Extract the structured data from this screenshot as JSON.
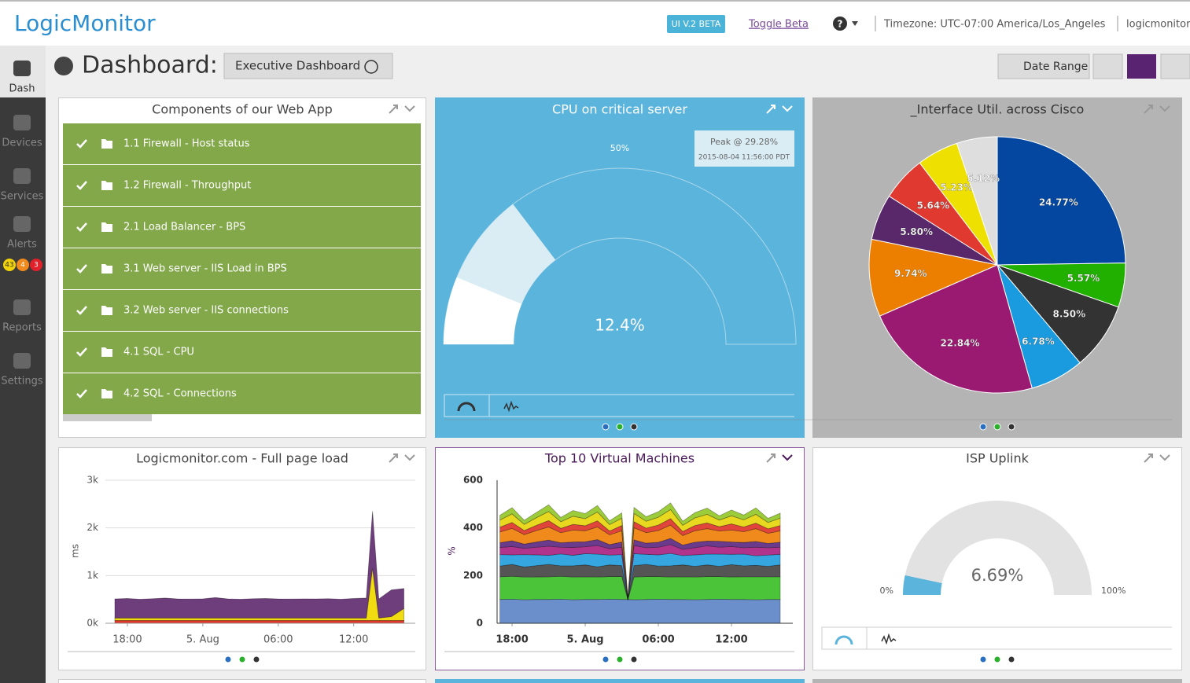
{
  "header": {
    "logo": "LogicMonitor",
    "beta_badge": "UI V.2 BETA",
    "toggle_beta": "Toggle Beta",
    "help": "?",
    "timezone": "Timezone: UTC-07:00 America/Los_Angeles",
    "user": "logicmonitor"
  },
  "sidebar": {
    "items": [
      "Dash",
      "Devices",
      "Services",
      "Alerts",
      "Reports",
      "Settings"
    ],
    "alert_counts": [
      43,
      4,
      3
    ]
  },
  "toolbar": {
    "label": "Dashboard:",
    "dashboard_name": "Executive Dashboard",
    "date_range": "Date Range"
  },
  "widgets": [
    {
      "type": "list",
      "title": "Components of our Web App",
      "items": [
        "1.1 Firewall - Host status",
        "1.2 Firewall - Throughput",
        "2.1 Load Balancer - BPS",
        "3.1 Web server - IIS Load in BPS",
        "3.2 Web server - IIS connections",
        "4.1 SQL - CPU",
        "4.2 SQL - Connections"
      ]
    },
    {
      "type": "gauge",
      "title": "CPU on critical server",
      "value": 12.4,
      "value_label": "12.4%",
      "range": [
        0,
        100
      ],
      "ticks": [
        {
          "value": 50,
          "label": "50%"
        }
      ],
      "peak": 29.28,
      "peak_label": "Peak @ 29.28%",
      "peak_time": "2015-08-04 11:56:00 PDT"
    },
    {
      "type": "pie",
      "title": "_Interface Util. across Cisco",
      "values": [
        24.77,
        5.57,
        8.5,
        6.78,
        22.84,
        9.74,
        5.8,
        5.64,
        5.23,
        5.12
      ],
      "value_labels": [
        "24.77%",
        "5.57%",
        "8.50%",
        "6.78%",
        "22.84%",
        "9.74%",
        "5.80%",
        "5.64%",
        "5.23%",
        "5.12%"
      ],
      "colors": [
        "#0347a0",
        "#21b000",
        "#333333",
        "#1a9be0",
        "#9a1a72",
        "#ec7f00",
        "#58286a",
        "#e03a30",
        "#eee000",
        "#dedede"
      ]
    },
    {
      "type": "area",
      "title": "Logicmonitor.com - Full page load",
      "y_label": "ms",
      "grid": true,
      "x": [
        17,
        18,
        19,
        20,
        21,
        22,
        23,
        24,
        25,
        26,
        27,
        28,
        29,
        30,
        31,
        32,
        33,
        34,
        35,
        36,
        37,
        37.5,
        38,
        39,
        40
      ],
      "xlim": [
        16.25,
        40.9
      ],
      "xticks": [
        {
          "value": 18,
          "label": "18:00"
        },
        {
          "value": 24,
          "label": "5. Aug"
        },
        {
          "value": 30,
          "label": "06:00"
        },
        {
          "value": 36,
          "label": "12:00"
        }
      ],
      "ylim": [
        0,
        3000
      ],
      "yticks": [
        {
          "value": 0,
          "label": "0k"
        },
        {
          "value": 1000,
          "label": "1k"
        },
        {
          "value": 2000,
          "label": "2k"
        },
        {
          "value": 3000,
          "label": "3k"
        }
      ],
      "series": [
        {
          "color": "#e0352b",
          "values": [
            60,
            60,
            60,
            60,
            60,
            60,
            60,
            60,
            60,
            60,
            60,
            60,
            60,
            60,
            60,
            60,
            60,
            60,
            60,
            60,
            60,
            60,
            60,
            60,
            60
          ]
        },
        {
          "color": "#f0dc10",
          "values": [
            50,
            50,
            50,
            50,
            50,
            50,
            50,
            50,
            50,
            50,
            50,
            50,
            50,
            50,
            50,
            50,
            50,
            50,
            50,
            50,
            50,
            1100,
            50,
            80,
            250
          ]
        },
        {
          "color": "#6e3d7c",
          "values": [
            400,
            410,
            395,
            405,
            420,
            400,
            398,
            402,
            430,
            400,
            395,
            405,
            410,
            400,
            398,
            402,
            400,
            405,
            395,
            410,
            420,
            1190,
            400,
            560,
            420
          ]
        }
      ]
    },
    {
      "type": "area",
      "title": "Top 10 Virtual Machines",
      "y_label": "%",
      "grid": false,
      "x": [
        17,
        18,
        19,
        20,
        21,
        22,
        23,
        24,
        25,
        26,
        27,
        27.5,
        28,
        29,
        30,
        31,
        32,
        33,
        34,
        35,
        36,
        37,
        38,
        39,
        40
      ],
      "xlim": [
        16.77,
        41.03
      ],
      "xticks": [
        {
          "value": 18,
          "label": "18:00"
        },
        {
          "value": 24,
          "label": "5. Aug"
        },
        {
          "value": 30,
          "label": "06:00"
        },
        {
          "value": 36,
          "label": "12:00"
        }
      ],
      "ylim": [
        0,
        600
      ],
      "yticks": [
        0,
        200,
        400,
        600
      ],
      "series": [
        {
          "color": "#6b8fcb",
          "values": [
            100,
            101,
            99,
            100,
            100,
            101,
            99,
            100,
            100,
            101,
            100,
            100,
            99,
            100,
            101,
            100,
            100,
            99,
            100,
            101,
            100,
            100,
            99,
            100,
            100
          ]
        },
        {
          "color": "#4cc43a",
          "values": [
            95,
            96,
            95,
            94,
            95,
            96,
            95,
            95,
            94,
            95,
            96,
            0,
            95,
            96,
            95,
            94,
            95,
            95,
            96,
            95,
            94,
            95,
            96,
            95,
            95
          ]
        },
        {
          "color": "#555555",
          "values": [
            45,
            50,
            42,
            48,
            52,
            44,
            47,
            50,
            43,
            49,
            46,
            0,
            48,
            51,
            44,
            47,
            50,
            45,
            49,
            43,
            52,
            46,
            48,
            44,
            50
          ]
        },
        {
          "color": "#35a6e0",
          "values": [
            48,
            40,
            52,
            45,
            38,
            50,
            44,
            47,
            53,
            41,
            46,
            0,
            50,
            42,
            47,
            52,
            39,
            48,
            45,
            51,
            43,
            49,
            40,
            47,
            44
          ]
        },
        {
          "color": "#b0348c",
          "values": [
            30,
            35,
            26,
            32,
            38,
            28,
            33,
            29,
            36,
            27,
            31,
            0,
            34,
            28,
            32,
            37,
            26,
            30,
            35,
            29,
            33,
            27,
            36,
            31,
            30
          ]
        },
        {
          "color": "#6a3a8c",
          "values": [
            20,
            24,
            18,
            22,
            26,
            19,
            23,
            21,
            25,
            17,
            22,
            0,
            24,
            19,
            21,
            26,
            18,
            23,
            20,
            25,
            19,
            22,
            24,
            18,
            21
          ]
        },
        {
          "color": "#f08a1c",
          "values": [
            45,
            52,
            40,
            48,
            55,
            42,
            50,
            46,
            53,
            41,
            47,
            0,
            51,
            44,
            49,
            56,
            40,
            48,
            52,
            43,
            50,
            45,
            54,
            42,
            48
          ]
        },
        {
          "color": "#e0443a",
          "values": [
            20,
            25,
            17,
            22,
            27,
            18,
            24,
            21,
            26,
            16,
            22,
            0,
            25,
            19,
            23,
            27,
            17,
            22,
            24,
            18,
            26,
            20,
            23,
            19,
            22
          ]
        },
        {
          "color": "#e8d820",
          "values": [
            30,
            36,
            26,
            32,
            38,
            28,
            34,
            30,
            37,
            27,
            31,
            0,
            35,
            29,
            33,
            38,
            26,
            32,
            36,
            28,
            34,
            30,
            37,
            27,
            31
          ]
        },
        {
          "color": "#9ccc3a",
          "values": [
            20,
            26,
            17,
            22,
            28,
            18,
            24,
            21,
            27,
            16,
            22,
            0,
            25,
            19,
            23,
            28,
            17,
            22,
            26,
            18,
            24,
            20,
            27,
            17,
            21
          ]
        }
      ]
    },
    {
      "type": "gauge",
      "title": "ISP Uplink",
      "value": 6.69,
      "value_label": "6.69%",
      "range": [
        0,
        100
      ],
      "ticks": [
        {
          "value": 0,
          "label": "0%"
        },
        {
          "value": 100,
          "label": "100%"
        }
      ]
    }
  ]
}
